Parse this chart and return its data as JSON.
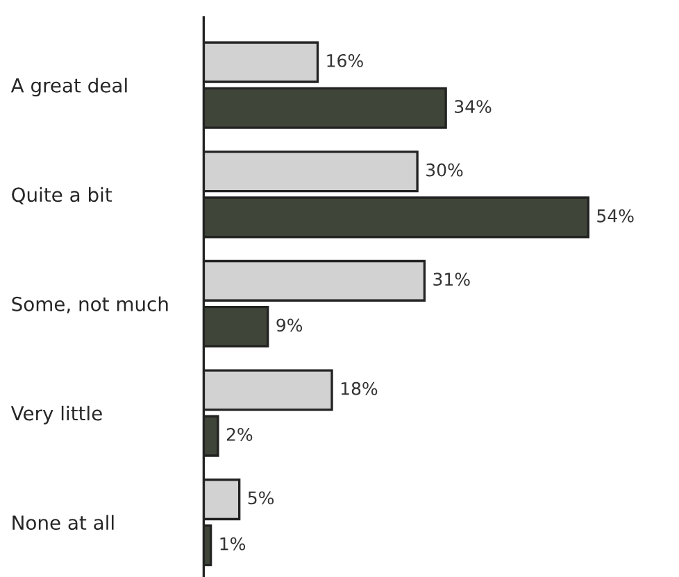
{
  "chart_data": {
    "type": "bar",
    "orientation": "horizontal",
    "categories": [
      "A great deal",
      "Quite a bit",
      "Some, not much",
      "Very little",
      "None at all"
    ],
    "series": [
      {
        "color": "#d2d2d2",
        "values": [
          16,
          30,
          31,
          18,
          5
        ],
        "value_labels": [
          "16%",
          "30%",
          "31%",
          "18%",
          "5%"
        ]
      },
      {
        "color": "#3f4538",
        "values": [
          34,
          54,
          9,
          2,
          1
        ],
        "value_labels": [
          "34%",
          "54%",
          "9%",
          "2%",
          "1%"
        ]
      }
    ],
    "grid": false,
    "legend": false
  }
}
